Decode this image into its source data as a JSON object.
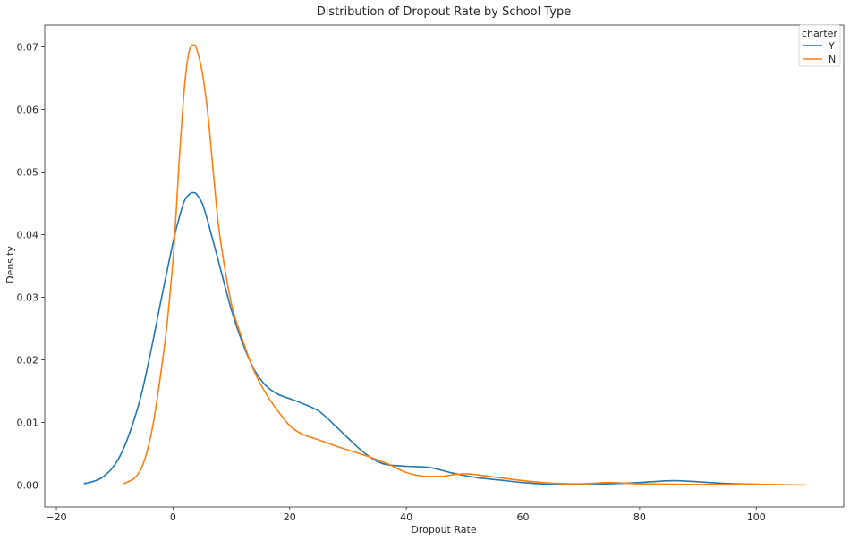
{
  "chart_data": {
    "type": "line",
    "title": "Distribution of Dropout Rate by School Type",
    "xlabel": "Dropout Rate",
    "ylabel": "Density",
    "xlim": [
      -22,
      115
    ],
    "ylim": [
      -0.0035,
      0.0735
    ],
    "xticks": [
      -20,
      0,
      20,
      40,
      60,
      80,
      100
    ],
    "yticks": [
      0.0,
      0.01,
      0.02,
      0.03,
      0.04,
      0.05,
      0.06,
      0.07
    ],
    "xtick_labels": [
      "−20",
      "0",
      "20",
      "40",
      "60",
      "80",
      "100"
    ],
    "ytick_labels": [
      "0.00",
      "0.01",
      "0.02",
      "0.03",
      "0.04",
      "0.05",
      "0.06",
      "0.07"
    ],
    "grid": false,
    "legend": {
      "title": "charter",
      "placement": "top-right"
    },
    "series": [
      {
        "name": "Y",
        "color": "#1f77b4",
        "x": [
          -15.3,
          -12,
          -9,
          -6,
          -4,
          -2,
          0,
          1,
          2,
          3,
          3.5,
          4,
          5,
          6,
          8,
          10,
          12,
          14,
          16,
          18,
          20,
          22,
          25,
          28,
          30,
          33,
          36,
          40,
          44,
          48,
          52,
          56,
          60,
          65,
          70,
          75,
          80,
          86,
          92,
          96,
          102
        ],
        "y": [
          0.0002,
          0.0013,
          0.0048,
          0.0125,
          0.0205,
          0.0298,
          0.0388,
          0.0425,
          0.0455,
          0.0466,
          0.0467,
          0.0465,
          0.045,
          0.042,
          0.035,
          0.028,
          0.0225,
          0.0183,
          0.0158,
          0.0145,
          0.0138,
          0.0131,
          0.0118,
          0.0093,
          0.0075,
          0.005,
          0.0034,
          0.003,
          0.0028,
          0.0019,
          0.0012,
          0.0008,
          0.0004,
          0.0001,
          0.0001,
          0.0002,
          0.0004,
          0.0007,
          0.0004,
          0.0002,
          0.0001
        ]
      },
      {
        "name": "N",
        "color": "#ff7f0e",
        "x": [
          -8.5,
          -6.5,
          -5,
          -3.5,
          -2,
          -1,
          0,
          0.5,
          1,
          1.5,
          2,
          2.5,
          3,
          3.5,
          4,
          5,
          6,
          7,
          8,
          10,
          12,
          14,
          16,
          18,
          20,
          22,
          25,
          28,
          31,
          34,
          37,
          40,
          43,
          46,
          50,
          55,
          60,
          65,
          70,
          75,
          80,
          90,
          100,
          108.5
        ],
        "y": [
          0.0002,
          0.0012,
          0.0037,
          0.0093,
          0.0185,
          0.026,
          0.036,
          0.043,
          0.051,
          0.058,
          0.064,
          0.068,
          0.07,
          0.0703,
          0.0698,
          0.066,
          0.059,
          0.049,
          0.04,
          0.029,
          0.023,
          0.018,
          0.0145,
          0.0118,
          0.0095,
          0.0082,
          0.0072,
          0.0062,
          0.0053,
          0.0044,
          0.0033,
          0.002,
          0.0014,
          0.0014,
          0.0018,
          0.0013,
          0.0007,
          0.0003,
          0.0002,
          0.0004,
          0.0002,
          0.0001,
          0.0001,
          0.0
        ]
      }
    ]
  }
}
